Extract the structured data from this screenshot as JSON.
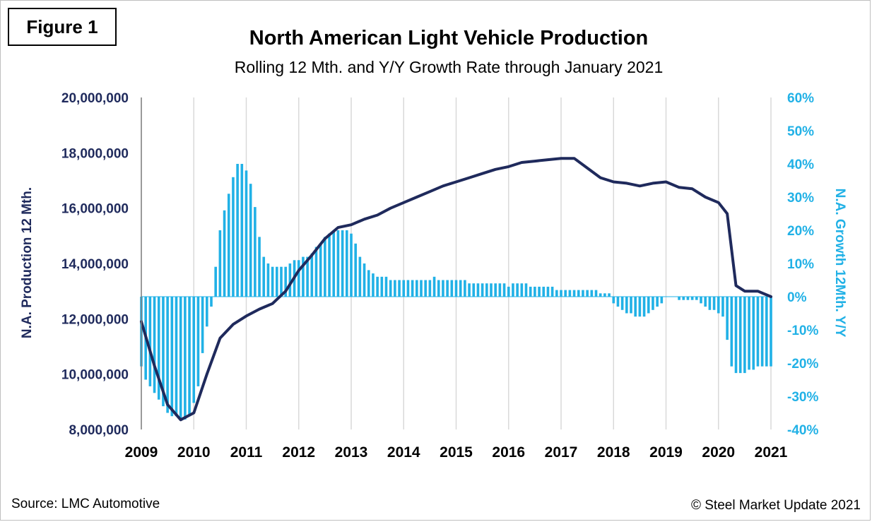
{
  "figure_label": "Figure 1",
  "source": "Source: LMC Automotive",
  "copyright": "© Steel Market Update 2021",
  "colors": {
    "line": "#1f2a5c",
    "bars": "#21b1e6",
    "grid": "#d9d9d9",
    "left_axis_text": "#1f2a5c",
    "right_axis_text": "#21b1e6"
  },
  "chart_data": {
    "type": "bar",
    "title": "North American Light Vehicle Production",
    "subtitle": "Rolling 12 Mth. and Y/Y Growth Rate through January 2021",
    "ylabel": "N.A. Production 12 Mth.",
    "y2label": "N.A. Growth 12Mth. Y/Y",
    "ylim": [
      8000000,
      20000000
    ],
    "y2lim": [
      -40,
      60
    ],
    "y_ticks": [
      "8,000,000",
      "10,000,000",
      "12,000,000",
      "14,000,000",
      "16,000,000",
      "18,000,000",
      "20,000,000"
    ],
    "y2_ticks": [
      "-40%",
      "-30%",
      "-20%",
      "-10%",
      "0%",
      "10%",
      "20%",
      "30%",
      "40%",
      "50%",
      "60%"
    ],
    "x_ticks": [
      "2009",
      "2010",
      "2011",
      "2012",
      "2013",
      "2014",
      "2015",
      "2016",
      "2017",
      "2018",
      "2019",
      "2020",
      "2021"
    ],
    "grid": "vertical",
    "start": "2009-01",
    "end": "2021-01",
    "series": [
      {
        "name": "N.A. Production 12 Mth.",
        "type": "line",
        "axis": "left",
        "points": [
          [
            "2009-01",
            11900000
          ],
          [
            "2009-04",
            10300000
          ],
          [
            "2009-07",
            8900000
          ],
          [
            "2009-10",
            8350000
          ],
          [
            "2010-01",
            8600000
          ],
          [
            "2010-04",
            10000000
          ],
          [
            "2010-07",
            11300000
          ],
          [
            "2010-10",
            11800000
          ],
          [
            "2011-01",
            12100000
          ],
          [
            "2011-04",
            12350000
          ],
          [
            "2011-07",
            12550000
          ],
          [
            "2011-10",
            13000000
          ],
          [
            "2012-01",
            13750000
          ],
          [
            "2012-04",
            14300000
          ],
          [
            "2012-07",
            14900000
          ],
          [
            "2012-10",
            15300000
          ],
          [
            "2013-01",
            15400000
          ],
          [
            "2013-04",
            15600000
          ],
          [
            "2013-07",
            15750000
          ],
          [
            "2013-10",
            16000000
          ],
          [
            "2014-01",
            16200000
          ],
          [
            "2014-04",
            16400000
          ],
          [
            "2014-07",
            16600000
          ],
          [
            "2014-10",
            16800000
          ],
          [
            "2015-01",
            16950000
          ],
          [
            "2015-04",
            17100000
          ],
          [
            "2015-07",
            17250000
          ],
          [
            "2015-10",
            17400000
          ],
          [
            "2016-01",
            17500000
          ],
          [
            "2016-04",
            17650000
          ],
          [
            "2016-07",
            17700000
          ],
          [
            "2016-10",
            17750000
          ],
          [
            "2017-01",
            17800000
          ],
          [
            "2017-04",
            17800000
          ],
          [
            "2017-07",
            17450000
          ],
          [
            "2017-10",
            17100000
          ],
          [
            "2018-01",
            16950000
          ],
          [
            "2018-04",
            16900000
          ],
          [
            "2018-07",
            16800000
          ],
          [
            "2018-10",
            16900000
          ],
          [
            "2019-01",
            16950000
          ],
          [
            "2019-04",
            16750000
          ],
          [
            "2019-07",
            16700000
          ],
          [
            "2019-10",
            16400000
          ],
          [
            "2020-01",
            16200000
          ],
          [
            "2020-03",
            15800000
          ],
          [
            "2020-05",
            13200000
          ],
          [
            "2020-07",
            13000000
          ],
          [
            "2020-10",
            13000000
          ],
          [
            "2021-01",
            12800000
          ]
        ]
      },
      {
        "name": "N.A. Growth 12Mth. Y/Y",
        "type": "bar",
        "axis": "right",
        "values": [
          -21,
          -25,
          -27,
          -29,
          -31,
          -33,
          -35,
          -36,
          -36,
          -37,
          -37,
          -36,
          -32,
          -27,
          -17,
          -9,
          -3,
          9,
          20,
          26,
          31,
          36,
          40,
          40,
          38,
          34,
          27,
          18,
          12,
          10,
          9,
          9,
          9,
          9,
          10,
          11,
          11,
          12,
          12,
          13,
          15,
          16,
          18,
          19,
          20,
          20,
          20,
          20,
          19,
          16,
          12,
          10,
          8,
          7,
          6,
          6,
          6,
          5,
          5,
          5,
          5,
          5,
          5,
          5,
          5,
          5,
          5,
          6,
          5,
          5,
          5,
          5,
          5,
          5,
          5,
          4,
          4,
          4,
          4,
          4,
          4,
          4,
          4,
          4,
          3,
          4,
          4,
          4,
          4,
          3,
          3,
          3,
          3,
          3,
          3,
          2,
          2,
          2,
          2,
          2,
          2,
          2,
          2,
          2,
          2,
          1,
          1,
          1,
          -2,
          -3,
          -4,
          -5,
          -5,
          -6,
          -6,
          -6,
          -5,
          -4,
          -3,
          -2,
          0,
          0,
          0,
          -1,
          -1,
          -1,
          -1,
          -1,
          -2,
          -3,
          -4,
          -4,
          -5,
          -6,
          -13,
          -21,
          -23,
          -23,
          -23,
          -22,
          -22,
          -21,
          -21,
          -21,
          -21
        ]
      }
    ]
  }
}
